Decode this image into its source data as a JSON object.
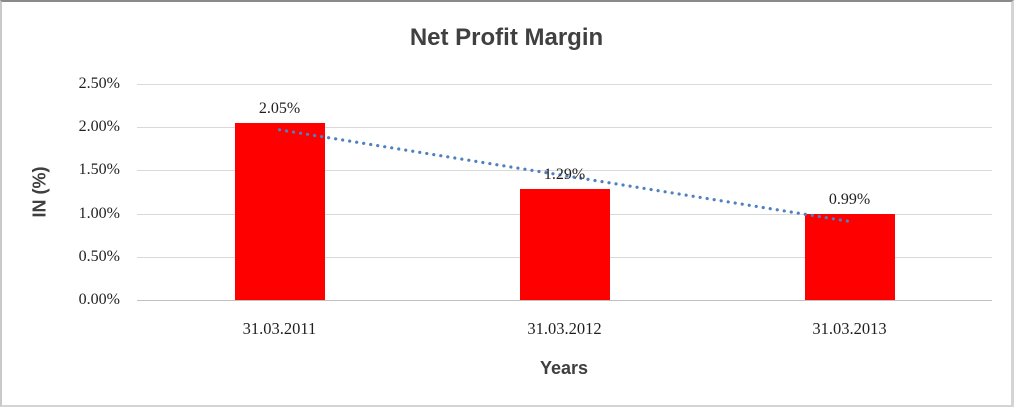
{
  "chart_data": {
    "type": "bar",
    "title": "Net Profit Margin",
    "xlabel": "Years",
    "ylabel": "IN (%)",
    "categories": [
      "31.03.2011",
      "31.03.2012",
      "31.03.2013"
    ],
    "values": [
      2.05,
      1.29,
      0.99
    ],
    "data_labels": [
      "2.05%",
      "1.29%",
      "0.99%"
    ],
    "ylim": [
      0,
      2.5
    ],
    "yticks": [
      0,
      0.5,
      1,
      1.5,
      2,
      2.5
    ],
    "ytick_labels": [
      "0.00%",
      "0.50%",
      "1.00%",
      "1.50%",
      "2.00%",
      "2.50%"
    ],
    "grid": true,
    "legend": "none",
    "colors": {
      "bar": "#FF0000",
      "trendline": "#4E81BD",
      "gridline": "#D9D9D9",
      "axis_line": "#C0C0C0",
      "title_text": "#404040",
      "label_text": "#1F1F1F"
    },
    "trendline": {
      "type": "linear",
      "style": "dotted",
      "fit_values": [
        1.97,
        1.44,
        0.91
      ]
    }
  }
}
